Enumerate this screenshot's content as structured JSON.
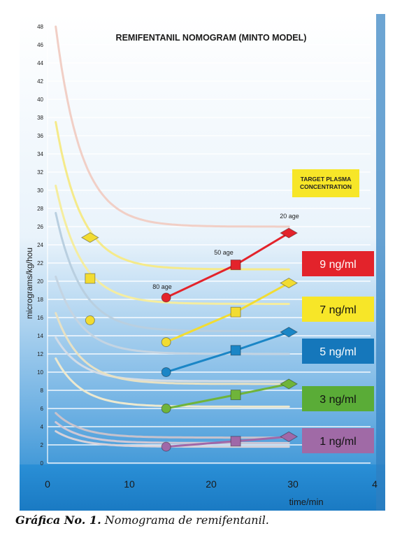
{
  "chart_data": {
    "type": "line",
    "title": "REMIFENTANIL NOMOGRAM (MINTO MODEL)",
    "xlabel": "time/min",
    "ylabel": "micrograms/kg/hou",
    "xlim": [
      0,
      40
    ],
    "ylim": [
      0,
      48
    ],
    "x_ticks": [
      "0",
      "10",
      "20",
      "30",
      "4"
    ],
    "y_ticks": [
      "0",
      "2",
      "4",
      "6",
      "8",
      "10",
      "12",
      "14",
      "16",
      "18",
      "20",
      "22",
      "24",
      "26",
      "28",
      "30",
      "32",
      "34",
      "36",
      "38",
      "40",
      "42",
      "44",
      "46",
      "48"
    ],
    "grid": true,
    "legend_title": "TARGET PLASMA CONCENTRATION",
    "legend_placement": "right",
    "age_markers": [
      "80 age",
      "50 age",
      "20 age"
    ],
    "series": [
      {
        "name": "9 ng/ml",
        "color": "#e3232b",
        "label_bg": "#e3232b",
        "label_color": "#ffffff",
        "curve_color": "#f1cfc6",
        "marker": "circle",
        "curve_start": 48,
        "curve_end": 26,
        "points": [
          {
            "x": 14.5,
            "y": 18.2
          },
          {
            "x": 23,
            "y": 21.8
          },
          {
            "x": 29.5,
            "y": 25.3
          }
        ]
      },
      {
        "name": "7 ng/ml",
        "color": "#f2dc32",
        "label_bg": "#f7e628",
        "label_color": "#111111",
        "curve_color": "#f5ea8a",
        "marker": "square",
        "curve_start": 37.5,
        "curve_end": 21.3,
        "points": [
          {
            "x": 14.5,
            "y": 13.3
          },
          {
            "x": 23,
            "y": 16.6
          },
          {
            "x": 29.5,
            "y": 19.8
          }
        ]
      },
      {
        "name": "5 ng/ml",
        "color": "#1b86c6",
        "label_bg": "#1577bb",
        "label_color": "#ffffff",
        "curve_color": "#b9cfe0",
        "marker": "diamond",
        "curve_start": 27.5,
        "curve_end": 14.5,
        "points": [
          {
            "x": 14.5,
            "y": 10.0
          },
          {
            "x": 23,
            "y": 12.4
          },
          {
            "x": 29.5,
            "y": 14.4
          }
        ]
      },
      {
        "name": "3 ng/ml",
        "color": "#6fb43a",
        "label_bg": "#5aac37",
        "label_color": "#111111",
        "curve_color": "#e7e1c4",
        "marker": "circle",
        "curve_start": 16.5,
        "curve_end": 8.7,
        "points": [
          {
            "x": 14.5,
            "y": 6.0
          },
          {
            "x": 23,
            "y": 7.5
          },
          {
            "x": 29.5,
            "y": 8.7
          }
        ]
      },
      {
        "name": "1 ng/ml",
        "color": "#a068a8",
        "label_bg": "#a06aa6",
        "label_color": "#111111",
        "curve_color": "#c7c2cc",
        "marker": "square",
        "curve_start": 5.5,
        "curve_end": 2.8,
        "points": [
          {
            "x": 14.5,
            "y": 1.8
          },
          {
            "x": 23,
            "y": 2.4
          },
          {
            "x": 29.5,
            "y": 2.9
          }
        ]
      }
    ],
    "left_markers": [
      {
        "x": 5.2,
        "y": 24.8,
        "shape": "diamond",
        "color": "#f2dc32"
      },
      {
        "x": 5.2,
        "y": 20.3,
        "shape": "square",
        "color": "#f2dc32"
      },
      {
        "x": 5.2,
        "y": 15.7,
        "shape": "circle",
        "color": "#f2dc32"
      }
    ],
    "extra_curves": [
      {
        "start": 30.5,
        "end": 17.5,
        "color": "#f5ed9f"
      },
      {
        "start": 20.5,
        "end": 12.0,
        "color": "#c4d4e2"
      },
      {
        "start": 13.8,
        "end": 9.0,
        "color": "#d3dce6"
      },
      {
        "start": 11.5,
        "end": 6.2,
        "color": "#ede9cf"
      },
      {
        "start": 4.5,
        "end": 2.2,
        "color": "#cfc8d6"
      },
      {
        "start": 3.5,
        "end": 1.8,
        "color": "#d6d2da"
      }
    ]
  },
  "caption": {
    "label": "Gráfica No. 1.",
    "text": "Nomograma de remifentanil."
  }
}
